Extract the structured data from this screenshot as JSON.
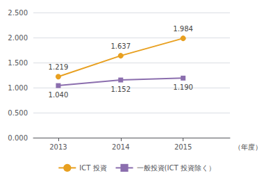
{
  "chart_data": {
    "type": "line",
    "x": [
      2013,
      2014,
      2015
    ],
    "xlim": [
      2012.6,
      2015.75
    ],
    "xticks": [
      2013,
      2014,
      2015
    ],
    "xlabel": "（年度）",
    "ylim": [
      0.0,
      2.5
    ],
    "yticks": [
      {
        "value": 0.0,
        "label": "0.000"
      },
      {
        "value": 0.5,
        "label": "0.500"
      },
      {
        "value": 1.0,
        "label": "1.000"
      },
      {
        "value": 1.5,
        "label": "1.500"
      },
      {
        "value": 2.0,
        "label": "2.000"
      },
      {
        "value": 2.5,
        "label": "2.500"
      }
    ],
    "grid": true,
    "legend": "bottom",
    "data_labels": true,
    "series": [
      {
        "name": "ICT 投資",
        "color": "#E8A020",
        "marker": "circle",
        "values": [
          1.219,
          1.637,
          1.984
        ]
      },
      {
        "name": "一般投資(ICT 投資除く）",
        "color": "#8B6EAE",
        "marker": "square",
        "values": [
          1.04,
          1.152,
          1.19
        ],
        "value_labels": [
          "1.040",
          "1.152",
          "1.190"
        ]
      }
    ]
  }
}
